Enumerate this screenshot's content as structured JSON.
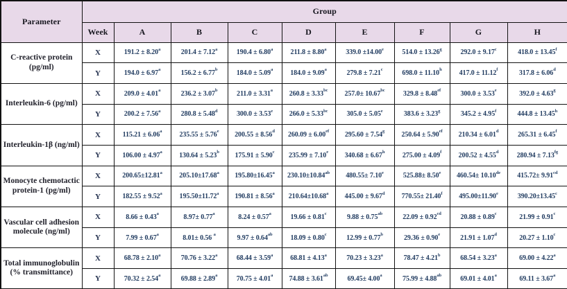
{
  "colors": {
    "header_background": "#e8d9e9",
    "border": "#111111",
    "header_text": "#17171f",
    "value_text": "#1f3a5f",
    "parameter_text": "#22222c"
  },
  "table": {
    "header": {
      "parameter": "Parameter",
      "group": "Group",
      "week": "Week",
      "columns": [
        "A",
        "B",
        "C",
        "D",
        "E",
        "F",
        "G",
        "H"
      ]
    },
    "rows": [
      {
        "parameter": "C-reactive protein (pg/ml)",
        "weeks": [
          {
            "label": "X",
            "values": [
              {
                "v": "191.2 ± 8.20",
                "s": "a"
              },
              {
                "v": "201.4 ± 7.12",
                "s": "a"
              },
              {
                "v": "190.4 ± 6.80",
                "s": "a"
              },
              {
                "v": "211.8 ± 8.80",
                "s": "a"
              },
              {
                "v": "339.0 ±14.00",
                "s": "e"
              },
              {
                "v": "514.0 ± 13.26",
                "s": "g"
              },
              {
                "v": "292.0 ± 9.17",
                "s": "c"
              },
              {
                "v": "418.0 ± 13.45",
                "s": "f"
              }
            ]
          },
          {
            "label": "Y",
            "values": [
              {
                "v": "194.0 ± 6.97",
                "s": "a"
              },
              {
                "v": "156.2 ± 6.77",
                "s": "b"
              },
              {
                "v": "184.0 ± 5.09",
                "s": "a"
              },
              {
                "v": "184.0 ± 9.09",
                "s": "a"
              },
              {
                "v": "279.8 ± 7.21",
                "s": "c"
              },
              {
                "v": "698.0 ± 11.10",
                "s": "h"
              },
              {
                "v": "417.0 ± 11.12",
                "s": "f"
              },
              {
                "v": "317.8 ± 6.06",
                "s": "d"
              }
            ]
          }
        ]
      },
      {
        "parameter": "Interleukin-6 (pg/ml)",
        "weeks": [
          {
            "label": "X",
            "values": [
              {
                "v": "209.0 ± 4.01",
                "s": "a"
              },
              {
                "v": "236.2 ± 3.07",
                "s": "b"
              },
              {
                "v": "211.0 ± 3.31",
                "s": "a"
              },
              {
                "v": "260.8 ± 3.33",
                "s": "bc"
              },
              {
                "v": "257.0± 10.67",
                "s": "bc"
              },
              {
                "v": "329.8 ± 8.48",
                "s": "ef"
              },
              {
                "v": "300.0 ± 3.53",
                "s": "e"
              },
              {
                "v": "392.0 ± 4.63",
                "s": "g"
              }
            ]
          },
          {
            "label": "Y",
            "values": [
              {
                "v": "200.2 ± 7.56",
                "s": "a"
              },
              {
                "v": "280.8 ± 5.48",
                "s": "d"
              },
              {
                "v": "300.0 ± 3.53",
                "s": "e"
              },
              {
                "v": "266.0 ± 5.33",
                "s": "bc"
              },
              {
                "v": "305.0 ± 5.05",
                "s": "e"
              },
              {
                "v": "383.6 ± 3.23",
                "s": "g"
              },
              {
                "v": "345.2 ± 4.95",
                "s": "f"
              },
              {
                "v": "444.8 ± 13.45",
                "s": "h"
              }
            ]
          }
        ]
      },
      {
        "parameter": "Interleukin-1β (ng/ml)",
        "weeks": [
          {
            "label": "X",
            "values": [
              {
                "v": "115.21 ± 6.06",
                "s": "a"
              },
              {
                "v": "235.55 ± 5.76",
                "s": "e"
              },
              {
                "v": "200.55 ± 8.56",
                "s": "d"
              },
              {
                "v": "260.09 ± 6.00",
                "s": "ef"
              },
              {
                "v": "295.60 ± 7.54",
                "s": "g"
              },
              {
                "v": "250.64 ± 5.90",
                "s": "ef"
              },
              {
                "v": "210.34 ± 6.01",
                "s": "d"
              },
              {
                "v": "265.31 ± 6.45",
                "s": "f"
              }
            ]
          },
          {
            "label": "Y",
            "values": [
              {
                "v": "106.00 ± 4.97",
                "s": "a"
              },
              {
                "v": "130.64 ± 5.23",
                "s": "b"
              },
              {
                "v": "175.91 ± 5.90",
                "s": "c"
              },
              {
                "v": "235.99 ± 7.10",
                "s": "e"
              },
              {
                "v": "340.68 ± 6.67",
                "s": "h"
              },
              {
                "v": "275.00 ± 4.09",
                "s": "f"
              },
              {
                "v": "200.52 ± 4.55",
                "s": "d"
              },
              {
                "v": "280.94 ± 7.13",
                "s": "fg"
              }
            ]
          }
        ]
      },
      {
        "parameter": "Monocyte chemotactic protein-1 (pg/ml)",
        "weeks": [
          {
            "label": "X",
            "values": [
              {
                "v": "200.65±12.81",
                "s": "a"
              },
              {
                "v": "205.10±17.68",
                "s": "a"
              },
              {
                "v": "195.80±16.45",
                "s": "a"
              },
              {
                "v": "230.10±10.84",
                "s": "ab"
              },
              {
                "v": "480.55± 7.10",
                "s": "e"
              },
              {
                "v": "525.88± 8.50",
                "s": "e"
              },
              {
                "v": "460.54± 10.10",
                "s": "de"
              },
              {
                "v": "415.72± 9.91",
                "s": "cd"
              }
            ]
          },
          {
            "label": "Y",
            "values": [
              {
                "v": "182.55 ± 9.52",
                "s": "a"
              },
              {
                "v": "195.50±11.72",
                "s": "a"
              },
              {
                "v": "190.81 ± 8.56",
                "s": "a"
              },
              {
                "v": "210.64±10.68",
                "s": "a"
              },
              {
                "v": "445.00 ± 9.67",
                "s": "d"
              },
              {
                "v": "770.55± 21.40",
                "s": "f"
              },
              {
                "v": "495.00±11.90",
                "s": "e"
              },
              {
                "v": "390.20±13.45",
                "s": "c"
              }
            ]
          }
        ]
      },
      {
        "parameter": "Vascular cell adhesion molecule (ng/ml)",
        "weeks": [
          {
            "label": "X",
            "values": [
              {
                "v": "8.66 ± 0.43",
                "s": "a"
              },
              {
                "v": "8.97± 0.77",
                "s": "a"
              },
              {
                "v": "8.24 ± 0.57",
                "s": "a"
              },
              {
                "v": "19.66 ± 0.81",
                "s": "c"
              },
              {
                "v": "9.88 ± 0.75",
                "s": "ab"
              },
              {
                "v": "22.09 ± 0.92",
                "s": "cd"
              },
              {
                "v": "20.88 ± 0.89",
                "s": "c"
              },
              {
                "v": "21.99 ± 0.91",
                "s": "c"
              }
            ]
          },
          {
            "label": "Y",
            "values": [
              {
                "v": "7.99 ± 0.67",
                "s": "a"
              },
              {
                "v": "8.01± 0.56 ",
                "s": "a"
              },
              {
                "v": "9.97 ± 0.64",
                "s": "ab"
              },
              {
                "v": "18.09 ± 0.80",
                "s": "c"
              },
              {
                "v": "12.99 ± 0.77",
                "s": "b"
              },
              {
                "v": "29.36 ± 0.90",
                "s": "e"
              },
              {
                "v": "21.91 ± 1.07",
                "s": "d"
              },
              {
                "v": "20.27 ± 1.10",
                "s": "c"
              }
            ]
          }
        ]
      },
      {
        "parameter": "Total immunoglobulin (% transmittance)",
        "weeks": [
          {
            "label": "X",
            "values": [
              {
                "v": "68.78 ± 2.10",
                "s": "a"
              },
              {
                "v": "70.76 ± 3.22",
                "s": "a"
              },
              {
                "v": "68.44 ± 3.59",
                "s": "a"
              },
              {
                "v": "68.81 ± 4.13",
                "s": "a"
              },
              {
                "v": "70.23 ± 3.23",
                "s": "a"
              },
              {
                "v": "78.47 ± 4.21",
                "s": "b"
              },
              {
                "v": "68.54 ± 3.23",
                "s": "a"
              },
              {
                "v": "69.00 ± 4.22",
                "s": "a"
              }
            ]
          },
          {
            "label": "Y",
            "values": [
              {
                "v": "70.32 ± 2.54",
                "s": "a"
              },
              {
                "v": "69.88 ± 2.89",
                "s": "a"
              },
              {
                "v": "70.75 ± 4.01",
                "s": "a"
              },
              {
                "v": "74.88 ± 3.61",
                "s": "ab"
              },
              {
                "v": "69.45± 4.00",
                "s": "a"
              },
              {
                "v": "75.99 ± 4.88",
                "s": "ab"
              },
              {
                "v": "69.01 ± 4.01",
                "s": "a"
              },
              {
                "v": "69.11 ± 3.67",
                "s": "a"
              }
            ]
          }
        ]
      }
    ]
  }
}
